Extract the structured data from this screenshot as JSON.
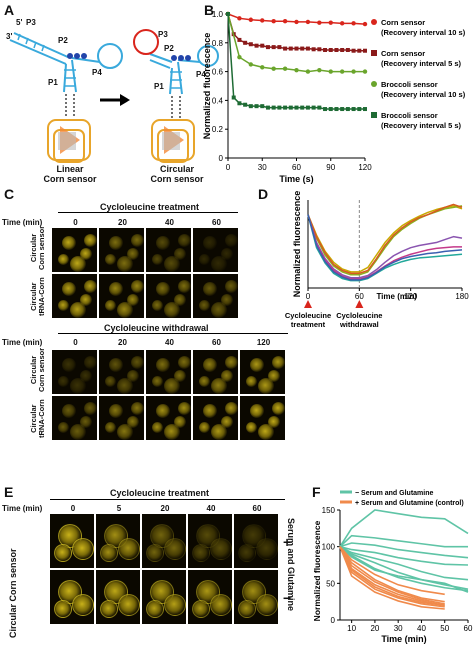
{
  "panels": {
    "a": {
      "label": "A",
      "labels": {
        "p3": "P3",
        "p2": "P2",
        "p1": "P1",
        "p4": "P4",
        "five": "5'",
        "three": "3'"
      },
      "linear_caption": [
        "Linear",
        "Corn sensor"
      ],
      "circular_caption": [
        "Circular",
        "Corn sensor"
      ]
    },
    "b": {
      "label": "B",
      "chart_data": {
        "type": "line",
        "xlabel": "Time (s)",
        "ylabel": "Normalized fluorescence",
        "xlim": [
          0,
          120
        ],
        "ylim": [
          0,
          1.0
        ],
        "xticks": [
          "0",
          "30",
          "60",
          "90",
          "120"
        ],
        "yticks": [
          "0",
          "0.2",
          "0.4",
          "0.6",
          "0.8",
          "1.0"
        ],
        "series": [
          {
            "name": "Corn sensor (Recovery interval 10 s)",
            "color": "#d9251c",
            "x": [
              0,
              10,
              20,
              30,
              40,
              50,
              60,
              70,
              80,
              90,
              100,
              110,
              120
            ],
            "y": [
              1.0,
              0.97,
              0.96,
              0.955,
              0.95,
              0.95,
              0.945,
              0.945,
              0.94,
              0.94,
              0.935,
              0.935,
              0.93
            ]
          },
          {
            "name": "Corn sensor (Recovery interval 5 s)",
            "color": "#8b1a1a",
            "x": [
              0,
              5,
              10,
              15,
              20,
              25,
              30,
              35,
              40,
              45,
              50,
              55,
              60,
              65,
              70,
              75,
              80,
              85,
              90,
              95,
              100,
              105,
              110,
              115,
              120
            ],
            "y": [
              1.0,
              0.86,
              0.82,
              0.8,
              0.79,
              0.78,
              0.78,
              0.77,
              0.77,
              0.77,
              0.76,
              0.76,
              0.76,
              0.76,
              0.76,
              0.755,
              0.755,
              0.75,
              0.75,
              0.75,
              0.75,
              0.75,
              0.745,
              0.745,
              0.745
            ]
          },
          {
            "name": "Broccoli sensor (Recovery interval 10 s)",
            "color": "#6aa52c",
            "x": [
              0,
              10,
              20,
              30,
              40,
              50,
              60,
              70,
              80,
              90,
              100,
              110,
              120
            ],
            "y": [
              1.0,
              0.7,
              0.65,
              0.63,
              0.62,
              0.62,
              0.61,
              0.6,
              0.61,
              0.6,
              0.6,
              0.6,
              0.6
            ]
          },
          {
            "name": "Broccoli sensor (Recovery interval 5 s)",
            "color": "#1e6b34",
            "x": [
              0,
              5,
              10,
              15,
              20,
              25,
              30,
              35,
              40,
              45,
              50,
              55,
              60,
              65,
              70,
              75,
              80,
              85,
              90,
              95,
              100,
              105,
              110,
              115,
              120
            ],
            "y": [
              1.0,
              0.42,
              0.38,
              0.37,
              0.36,
              0.36,
              0.36,
              0.35,
              0.35,
              0.35,
              0.35,
              0.35,
              0.35,
              0.35,
              0.35,
              0.35,
              0.35,
              0.34,
              0.34,
              0.34,
              0.34,
              0.34,
              0.34,
              0.34,
              0.34
            ]
          }
        ],
        "legend": [
          [
            "Corn sensor",
            "(Recovery interval 10 s)"
          ],
          [
            "Corn sensor",
            "(Recovery interval 5 s)"
          ],
          [
            "Broccoli sensor",
            "(Recovery interval 10 s)"
          ],
          [
            "Broccoli sensor",
            "(Recovery interval 5 s)"
          ]
        ]
      }
    },
    "c": {
      "label": "C",
      "treatment_title": "Cycloleucine treatment",
      "withdrawal_title": "Cycloleucine withdrawal",
      "time_label": "Time (min)",
      "treatment_times": [
        "0",
        "20",
        "40",
        "60"
      ],
      "withdrawal_times": [
        "0",
        "20",
        "40",
        "60",
        "120"
      ],
      "row1": [
        "Circular",
        "Corn sensor"
      ],
      "row2": [
        "Circular",
        "tRNA-Corn"
      ]
    },
    "d": {
      "label": "D",
      "chart_data": {
        "type": "line",
        "xlabel": "Time (min)",
        "ylabel": "Normalized fluorescence",
        "xlim": [
          0,
          180
        ],
        "xticks": [
          "0",
          "60",
          "120",
          "180"
        ],
        "series": [
          {
            "color": "#c8a800",
            "x": [
              0,
              10,
              20,
              30,
              40,
              50,
              60,
              70,
              80,
              90,
              100,
              110,
              120,
              130,
              140,
              150,
              160,
              170,
              180
            ],
            "y": [
              100,
              72,
              50,
              35,
              26,
              22,
              22,
              28,
              45,
              62,
              75,
              85,
              92,
              98,
              103,
              107,
              110,
              112,
              108
            ]
          },
          {
            "color": "#8ab020",
            "x": [
              0,
              10,
              20,
              30,
              40,
              50,
              60,
              70,
              80,
              90,
              100,
              110,
              120,
              130,
              140,
              150,
              160,
              170,
              180
            ],
            "y": [
              100,
              68,
              45,
              30,
              22,
              18,
              18,
              22,
              38,
              55,
              70,
              80,
              88,
              95,
              100,
              104,
              108,
              110,
              112
            ]
          },
          {
            "color": "#d65a20",
            "x": [
              0,
              10,
              20,
              30,
              40,
              50,
              60,
              70,
              80,
              90,
              100,
              110,
              120,
              130,
              140,
              150,
              160,
              170,
              180
            ],
            "y": [
              100,
              70,
              48,
              32,
              24,
              20,
              20,
              24,
              40,
              58,
              72,
              82,
              90,
              96,
              100,
              105,
              110,
              114,
              110
            ]
          },
          {
            "color": "#8a55b0",
            "x": [
              0,
              10,
              20,
              30,
              40,
              50,
              60,
              70,
              80,
              90,
              100,
              110,
              120,
              130,
              140,
              150,
              160,
              170,
              180
            ],
            "y": [
              100,
              62,
              40,
              26,
              18,
              14,
              14,
              17,
              25,
              35,
              44,
              50,
              55,
              58,
              60,
              62,
              66,
              70,
              68
            ]
          },
          {
            "color": "#c43a8a",
            "x": [
              0,
              10,
              20,
              30,
              40,
              50,
              60,
              70,
              80,
              90,
              100,
              110,
              120,
              130,
              140,
              150,
              160,
              170,
              180
            ],
            "y": [
              100,
              60,
              38,
              24,
              16,
              12,
              12,
              15,
              22,
              30,
              37,
              42,
              46,
              49,
              52,
              54,
              55,
              56,
              56
            ]
          },
          {
            "color": "#22a89a",
            "x": [
              0,
              10,
              20,
              30,
              40,
              50,
              60,
              70,
              80,
              90,
              100,
              110,
              120,
              130,
              140,
              150,
              160,
              170,
              180
            ],
            "y": [
              100,
              55,
              34,
              20,
              13,
              10,
              10,
              13,
              20,
              27,
              32,
              36,
              39,
              41,
              42,
              43,
              44,
              45,
              46
            ]
          },
          {
            "color": "#3a5fb0",
            "x": [
              0,
              10,
              20,
              30,
              40,
              50,
              60,
              70,
              80,
              90,
              100,
              110,
              120,
              130,
              140,
              150,
              160,
              170,
              180
            ],
            "y": [
              100,
              58,
              36,
              22,
              15,
              11,
              11,
              14,
              21,
              29,
              35,
              40,
              43,
              45,
              47,
              48,
              50,
              51,
              52
            ]
          }
        ],
        "annotations": [
          {
            "x": 0,
            "text": [
              "Cycloleucine",
              "treatment"
            ]
          },
          {
            "x": 60,
            "text": [
              "Cycloleucine",
              "withdrawal"
            ]
          }
        ]
      }
    },
    "e": {
      "label": "E",
      "title": "Cycloleucine treatment",
      "time_label": "Time (min)",
      "times": [
        "0",
        "5",
        "20",
        "40",
        "60"
      ],
      "row_label": "Circular Corn sensor",
      "side_label": "Serum and Glutamine",
      "plus": "+",
      "minus": "−"
    },
    "f": {
      "label": "F",
      "chart_data": {
        "type": "line",
        "xlabel": "Time (min)",
        "ylabel": "Normalized fluorescence",
        "xlim": [
          5,
          60
        ],
        "ylim": [
          0,
          150
        ],
        "xticks": [
          "10",
          "20",
          "30",
          "40",
          "50",
          "60"
        ],
        "yticks": [
          "0",
          "50",
          "100",
          "150"
        ],
        "legend": [
          "− Serum and Glutamine",
          "+ Serum and Glutamine (control)"
        ],
        "series": [
          {
            "group": "minus",
            "color": "#5fc4a6",
            "x": [
              5,
              10,
              20,
              30,
              40,
              50,
              60
            ],
            "y": [
              100,
              125,
              150,
              145,
              140,
              138,
              118
            ]
          },
          {
            "group": "minus",
            "color": "#5fc4a6",
            "x": [
              5,
              10,
              20,
              30,
              40,
              50,
              60
            ],
            "y": [
              100,
              115,
              112,
              108,
              104,
              100,
              100
            ]
          },
          {
            "group": "minus",
            "color": "#5fc4a6",
            "x": [
              5,
              10,
              20,
              30,
              40,
              50,
              60
            ],
            "y": [
              100,
              105,
              102,
              96,
              92,
              88,
              85
            ]
          },
          {
            "group": "minus",
            "color": "#5fc4a6",
            "x": [
              5,
              10,
              20,
              30,
              40,
              50,
              60
            ],
            "y": [
              100,
              96,
              92,
              85,
              80,
              76,
              75
            ]
          },
          {
            "group": "minus",
            "color": "#5fc4a6",
            "x": [
              5,
              10,
              20,
              30,
              40,
              50,
              60
            ],
            "y": [
              100,
              90,
              78,
              65,
              55,
              48,
              42
            ]
          },
          {
            "group": "minus",
            "color": "#5fc4a6",
            "x": [
              5,
              10,
              20,
              30,
              40,
              50,
              60
            ],
            "y": [
              100,
              88,
              70,
              58,
              50,
              44,
              40
            ]
          },
          {
            "group": "minus",
            "color": "#5fc4a6",
            "x": [
              5,
              10,
              20,
              30,
              40,
              50,
              60
            ],
            "y": [
              100,
              86,
              68,
              60,
              55,
              50,
              38
            ]
          },
          {
            "group": "minus",
            "color": "#5fc4a6",
            "x": [
              5,
              10,
              20,
              30,
              40,
              50,
              60
            ],
            "y": [
              100,
              92,
              84,
              76,
              66,
              58,
              55
            ]
          },
          {
            "group": "plus",
            "color": "#f08a4b",
            "x": [
              5,
              10,
              20,
              30,
              40,
              50
            ],
            "y": [
              100,
              78,
              55,
              40,
              30,
              25
            ]
          },
          {
            "group": "plus",
            "color": "#f08a4b",
            "x": [
              5,
              10,
              20,
              30,
              40,
              50
            ],
            "y": [
              100,
              70,
              48,
              35,
              26,
              20
            ]
          },
          {
            "group": "plus",
            "color": "#f08a4b",
            "x": [
              5,
              10,
              20,
              30,
              40,
              50
            ],
            "y": [
              100,
              65,
              42,
              30,
              22,
              18
            ]
          },
          {
            "group": "plus",
            "color": "#f08a4b",
            "x": [
              5,
              10,
              20,
              30,
              40,
              50
            ],
            "y": [
              100,
              60,
              38,
              26,
              18,
              15
            ]
          },
          {
            "group": "plus",
            "color": "#f08a4b",
            "x": [
              5,
              10,
              20,
              30,
              40,
              50
            ],
            "y": [
              100,
              82,
              62,
              48,
              40,
              35
            ]
          },
          {
            "group": "plus",
            "color": "#f08a4b",
            "x": [
              5,
              10,
              20,
              30,
              40,
              50
            ],
            "y": [
              100,
              74,
              52,
              38,
              28,
              22
            ]
          },
          {
            "group": "plus",
            "color": "#f08a4b",
            "x": [
              5,
              10,
              20,
              30,
              40,
              50
            ],
            "y": [
              100,
              68,
              45,
              32,
              24,
              20
            ]
          }
        ]
      }
    }
  }
}
